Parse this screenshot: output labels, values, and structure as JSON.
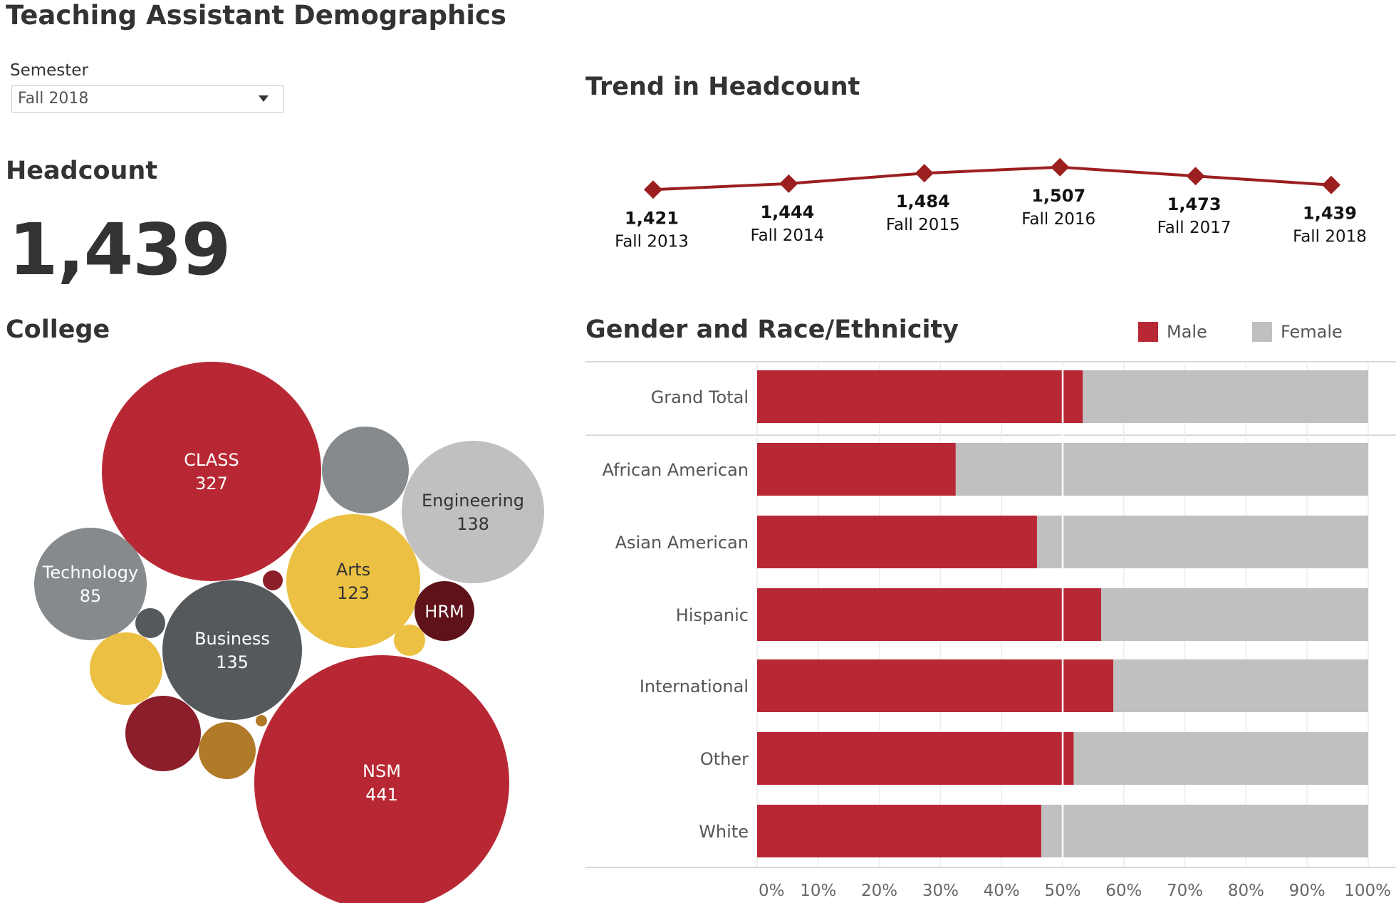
{
  "page": {
    "title": "Teaching Assistant Demographics"
  },
  "filter": {
    "label": "Semester",
    "selected": "Fall 2018"
  },
  "headcount": {
    "title": "Headcount",
    "value": "1,439"
  },
  "colors": {
    "red": "#b82834",
    "darkred": "#8c1e2a",
    "maroon": "#5f1219",
    "gray_dark": "#55595c",
    "gray_mid": "#868a8d",
    "gray_light": "#c0c0c0",
    "gold": "#ecc043",
    "bronze": "#b07a28",
    "line": "#9c1f1f"
  },
  "college_chart": {
    "title": "College",
    "bubbles": [
      {
        "label": "CLASS",
        "value": "327",
        "color": "#b82834"
      },
      {
        "label": "NSM",
        "value": "441",
        "color": "#b82834"
      },
      {
        "label": "Engineering",
        "value": "138",
        "color": "#c0c0c0"
      },
      {
        "label": "Technology",
        "value": "85",
        "color": "#868a8d"
      },
      {
        "label": "Arts",
        "value": "123",
        "color": "#ecc043"
      },
      {
        "label": "Business",
        "value": "135",
        "color": "#55595c"
      },
      {
        "label": "HRM",
        "value": "",
        "color": "#5f1219"
      },
      {
        "label": "",
        "value": "",
        "color": "#868a8d"
      },
      {
        "label": "",
        "value": "",
        "color": "#ecc043"
      },
      {
        "label": "",
        "value": "",
        "color": "#8c1e2a"
      },
      {
        "label": "",
        "value": "",
        "color": "#b07a28"
      },
      {
        "label": "",
        "value": "",
        "color": "#55595c"
      },
      {
        "label": "",
        "value": "",
        "color": "#ecc043"
      },
      {
        "label": "",
        "value": "",
        "color": "#8c1e2a"
      },
      {
        "label": "",
        "value": "",
        "color": "#b07a28"
      }
    ]
  },
  "chart_data": [
    {
      "type": "line",
      "title": "Trend in Headcount",
      "x": [
        "Fall 2013",
        "Fall 2014",
        "Fall 2015",
        "Fall 2016",
        "Fall 2017",
        "Fall 2018"
      ],
      "values": [
        1421,
        1444,
        1484,
        1507,
        1473,
        1439
      ],
      "value_labels": [
        "1,421",
        "1,444",
        "1,484",
        "1,507",
        "1,473",
        "1,439"
      ],
      "color": "#9c1f1f"
    },
    {
      "type": "bar",
      "orientation": "horizontal",
      "stacked": "percent",
      "title": "Gender and Race/Ethnicity",
      "categories": [
        "Grand Total",
        "African American",
        "Asian American",
        "Hispanic",
        "International",
        "Other",
        "White"
      ],
      "series": [
        {
          "name": "Male",
          "color": "#b82834",
          "values": [
            53.3,
            32.5,
            45.8,
            56.3,
            58.3,
            51.8,
            46.5
          ]
        },
        {
          "name": "Female",
          "color": "#c0c0c0",
          "values": [
            46.7,
            67.5,
            54.2,
            43.7,
            41.7,
            48.2,
            53.5
          ]
        }
      ],
      "x_ticks": [
        "0%",
        "10%",
        "20%",
        "30%",
        "40%",
        "50%",
        "60%",
        "70%",
        "80%",
        "90%",
        "100%"
      ],
      "xlim": [
        0,
        100
      ],
      "reference_line": 50,
      "legend": "top-right"
    }
  ]
}
